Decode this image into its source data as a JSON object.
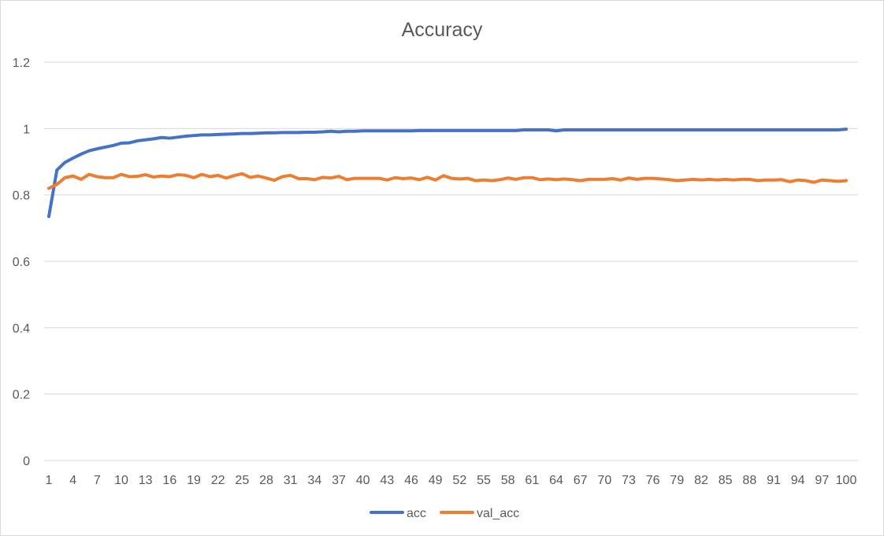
{
  "chart_data": {
    "type": "line",
    "title": "Accuracy",
    "xlabel": "",
    "ylabel": "",
    "ylim": [
      0,
      1.2
    ],
    "yticks": [
      "0",
      "0.2",
      "0.4",
      "0.6",
      "0.8",
      "1",
      "1.2"
    ],
    "x": [
      1,
      2,
      3,
      4,
      5,
      6,
      7,
      8,
      9,
      10,
      11,
      12,
      13,
      14,
      15,
      16,
      17,
      18,
      19,
      20,
      21,
      22,
      23,
      24,
      25,
      26,
      27,
      28,
      29,
      30,
      31,
      32,
      33,
      34,
      35,
      36,
      37,
      38,
      39,
      40,
      41,
      42,
      43,
      44,
      45,
      46,
      47,
      48,
      49,
      50,
      51,
      52,
      53,
      54,
      55,
      56,
      57,
      58,
      59,
      60,
      61,
      62,
      63,
      64,
      65,
      66,
      67,
      68,
      69,
      70,
      71,
      72,
      73,
      74,
      75,
      76,
      77,
      78,
      79,
      80,
      81,
      82,
      83,
      84,
      85,
      86,
      87,
      88,
      89,
      90,
      91,
      92,
      93,
      94,
      95,
      96,
      97,
      98,
      99,
      100
    ],
    "xtick_labels": [
      "1",
      "4",
      "7",
      "10",
      "13",
      "16",
      "19",
      "22",
      "25",
      "28",
      "31",
      "34",
      "37",
      "40",
      "43",
      "46",
      "49",
      "52",
      "55",
      "58",
      "61",
      "64",
      "67",
      "70",
      "73",
      "76",
      "79",
      "82",
      "85",
      "88",
      "91",
      "94",
      "97",
      "100"
    ],
    "grid": true,
    "legend": "bottom",
    "series": [
      {
        "name": "acc",
        "color": "#4472c4",
        "values": [
          0.735,
          0.875,
          0.898,
          0.911,
          0.923,
          0.933,
          0.939,
          0.944,
          0.949,
          0.956,
          0.957,
          0.963,
          0.966,
          0.969,
          0.973,
          0.971,
          0.974,
          0.977,
          0.979,
          0.981,
          0.981,
          0.982,
          0.983,
          0.984,
          0.985,
          0.985,
          0.986,
          0.987,
          0.987,
          0.988,
          0.988,
          0.988,
          0.989,
          0.989,
          0.99,
          0.992,
          0.99,
          0.992,
          0.992,
          0.993,
          0.993,
          0.993,
          0.993,
          0.993,
          0.993,
          0.993,
          0.994,
          0.994,
          0.994,
          0.994,
          0.994,
          0.994,
          0.994,
          0.994,
          0.994,
          0.994,
          0.994,
          0.994,
          0.994,
          0.996,
          0.996,
          0.996,
          0.996,
          0.993,
          0.996,
          0.996,
          0.996,
          0.996,
          0.996,
          0.996,
          0.996,
          0.996,
          0.996,
          0.996,
          0.996,
          0.996,
          0.996,
          0.996,
          0.996,
          0.996,
          0.996,
          0.996,
          0.996,
          0.996,
          0.996,
          0.996,
          0.996,
          0.996,
          0.996,
          0.996,
          0.996,
          0.996,
          0.996,
          0.996,
          0.996,
          0.996,
          0.996,
          0.996,
          0.996,
          0.998
        ]
      },
      {
        "name": "val_acc",
        "color": "#ed7d31",
        "values": [
          0.82,
          0.832,
          0.852,
          0.857,
          0.847,
          0.862,
          0.855,
          0.852,
          0.852,
          0.862,
          0.855,
          0.856,
          0.861,
          0.854,
          0.857,
          0.855,
          0.861,
          0.859,
          0.852,
          0.862,
          0.855,
          0.859,
          0.851,
          0.858,
          0.864,
          0.853,
          0.857,
          0.851,
          0.844,
          0.855,
          0.859,
          0.849,
          0.849,
          0.846,
          0.853,
          0.851,
          0.856,
          0.846,
          0.85,
          0.85,
          0.85,
          0.85,
          0.845,
          0.852,
          0.849,
          0.851,
          0.846,
          0.853,
          0.845,
          0.858,
          0.85,
          0.848,
          0.85,
          0.843,
          0.845,
          0.843,
          0.846,
          0.851,
          0.847,
          0.852,
          0.852,
          0.846,
          0.848,
          0.846,
          0.848,
          0.846,
          0.843,
          0.847,
          0.847,
          0.847,
          0.849,
          0.845,
          0.851,
          0.847,
          0.85,
          0.85,
          0.848,
          0.846,
          0.843,
          0.845,
          0.847,
          0.845,
          0.847,
          0.845,
          0.847,
          0.845,
          0.847,
          0.847,
          0.843,
          0.845,
          0.845,
          0.846,
          0.84,
          0.845,
          0.843,
          0.838,
          0.845,
          0.843,
          0.841,
          0.843
        ]
      }
    ]
  }
}
